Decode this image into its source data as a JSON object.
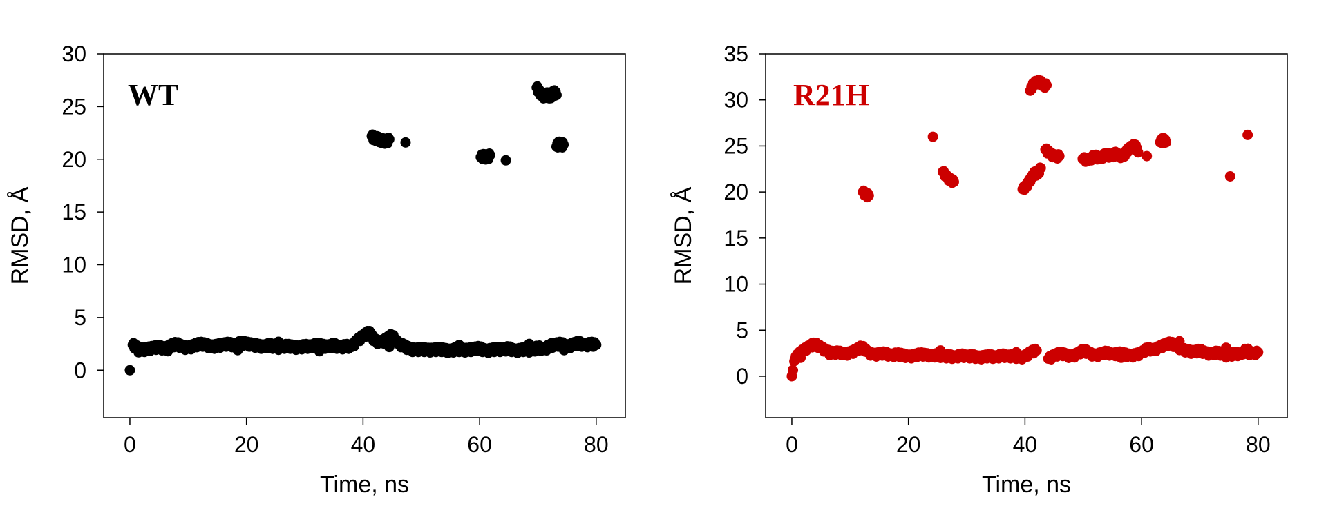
{
  "chart_data": [
    {
      "type": "scatter",
      "title": "",
      "panel_label": "WT",
      "xlabel": "Time, ns",
      "ylabel": "RMSD, Å",
      "xlim": [
        -4.5,
        85
      ],
      "ylim": [
        -4.5,
        30
      ],
      "xticks": [
        0,
        20,
        40,
        60,
        80
      ],
      "yticks": [
        0,
        5,
        10,
        15,
        20,
        25,
        30
      ],
      "grid": false,
      "color": "#000000",
      "series": [
        {
          "x": [
            0,
            0.5,
            1,
            2,
            3,
            4,
            5,
            6,
            7,
            8,
            9,
            10,
            11,
            12,
            13,
            14,
            15,
            16,
            17,
            18,
            19,
            20,
            21,
            22,
            23,
            24,
            25,
            26,
            27,
            28,
            29,
            30,
            31,
            32,
            33,
            34,
            35,
            36,
            37,
            38,
            39,
            40,
            41,
            41.5,
            42,
            43,
            44,
            45,
            46,
            47,
            48,
            49,
            50,
            51,
            52,
            53,
            54,
            55,
            56,
            57,
            58,
            59,
            60,
            61,
            62,
            63,
            64,
            65,
            66,
            67,
            68,
            69,
            70,
            71,
            72,
            73,
            74,
            75,
            76,
            77,
            78,
            79,
            80,
            1.5,
            6.5,
            12.5,
            18.5,
            25.5,
            32.5,
            38.5,
            44.5,
            50.5,
            56.5,
            62.5,
            68.5,
            74.5,
            78.5,
            41.5,
            42,
            42.5,
            43,
            43.5,
            44,
            44.5,
            47.3,
            60.2,
            60.8,
            61.3,
            61.8,
            64.5,
            69.8,
            70.2,
            70.7,
            71.2,
            71.7,
            72.2,
            72.7,
            73.2,
            73.2,
            73.6,
            74,
            74.4
          ],
          "y": [
            0,
            2.4,
            2.2,
            1.9,
            2.0,
            2.1,
            2.2,
            2.0,
            2.3,
            2.5,
            2.2,
            2.1,
            2.3,
            2.5,
            2.4,
            2.2,
            2.3,
            2.4,
            2.5,
            2.3,
            2.6,
            2.5,
            2.4,
            2.3,
            2.2,
            2.4,
            2.1,
            2.2,
            2.3,
            2.2,
            2.1,
            2.3,
            2.2,
            2.4,
            2.3,
            2.2,
            2.4,
            2.1,
            2.3,
            2.2,
            2.8,
            3.2,
            3.6,
            3.2,
            2.8,
            2.6,
            2.9,
            3.3,
            2.5,
            2.3,
            2.0,
            1.9,
            2.0,
            1.9,
            1.9,
            2.0,
            1.9,
            1.8,
            2.0,
            1.9,
            1.9,
            2.0,
            2.1,
            1.8,
            1.9,
            2.0,
            1.9,
            2.1,
            1.8,
            1.9,
            2.0,
            1.8,
            2.2,
            1.9,
            2.3,
            2.4,
            2.5,
            2.2,
            2.4,
            2.6,
            2.3,
            2.5,
            2.4,
            1.7,
            1.8,
            2.6,
            1.9,
            2.7,
            1.8,
            2.6,
            2.2,
            1.8,
            2.4,
            1.9,
            2.5,
            1.9,
            2.2,
            22.2,
            21.9,
            22.0,
            21.7,
            21.8,
            21.6,
            21.9,
            21.6,
            20.2,
            20.3,
            20.1,
            20.4,
            19.9,
            26.8,
            26.4,
            26.1,
            25.9,
            26.2,
            25.8,
            26.4,
            26.1,
            21.2,
            21.5,
            21.3,
            21.4
          ]
        }
      ]
    },
    {
      "type": "scatter",
      "title": "",
      "panel_label": "R21H",
      "xlabel": "Time, ns",
      "ylabel": "RMSD, Å",
      "xlim": [
        -4.5,
        85
      ],
      "ylim": [
        -4.5,
        35
      ],
      "xticks": [
        0,
        20,
        40,
        60,
        80
      ],
      "yticks": [
        0,
        5,
        10,
        15,
        20,
        25,
        30,
        35
      ],
      "grid": false,
      "color": "#cc0000",
      "series": [
        {
          "x": [
            0,
            0.5,
            1,
            2,
            3,
            4,
            5,
            6,
            7,
            8,
            9,
            10,
            11,
            12,
            13,
            14,
            15,
            16,
            17,
            18,
            19,
            20,
            21,
            22,
            23,
            24,
            25,
            26,
            27,
            28,
            29,
            30,
            31,
            32,
            33,
            34,
            35,
            36,
            37,
            38,
            39,
            40,
            41,
            42,
            44,
            45,
            46,
            47,
            48,
            49,
            50,
            51,
            52,
            53,
            54,
            55,
            56,
            57,
            58,
            59,
            60,
            61,
            62,
            63,
            64,
            65,
            66,
            67,
            68,
            69,
            70,
            71,
            72,
            73,
            74,
            75,
            76,
            77,
            78,
            79,
            80,
            1.5,
            3.5,
            6.5,
            12.5,
            18.5,
            25.5,
            32.5,
            38.5,
            44.5,
            50.5,
            56.5,
            63.5,
            66.5,
            70.5,
            74.5,
            78.5,
            12.2,
            12.7,
            13.2,
            24.2,
            25.9,
            26.6,
            27.2,
            27.8,
            39.6,
            40.2,
            40.7,
            41.2,
            41.7,
            42.2,
            42.7,
            40.9,
            41.5,
            42.6,
            43.1,
            43.7,
            43.5,
            44.2,
            45.2,
            45.9,
            49.9,
            50.9,
            51.9,
            52.9,
            53.9,
            54.9,
            55.4,
            55.9,
            56.9,
            57.4,
            57.9,
            58.9,
            59.4,
            60.9,
            63.2,
            63.7,
            64.2,
            75.2,
            78.2
          ],
          "y": [
            0,
            1.8,
            2.3,
            2.8,
            3.2,
            3.5,
            3.1,
            2.7,
            2.5,
            2.6,
            2.4,
            2.5,
            2.8,
            3.2,
            2.6,
            2.3,
            2.4,
            2.5,
            2.2,
            2.4,
            2.3,
            2.1,
            2.2,
            2.4,
            2.3,
            2.2,
            2.3,
            2.1,
            2.2,
            2.0,
            2.3,
            2.1,
            2.2,
            2.0,
            2.1,
            2.2,
            2.0,
            2.3,
            2.1,
            2.2,
            2.0,
            2.1,
            2.6,
            2.8,
            1.9,
            2.2,
            2.5,
            2.3,
            2.1,
            2.4,
            2.8,
            2.5,
            2.2,
            2.4,
            2.6,
            2.3,
            2.5,
            2.4,
            2.2,
            2.3,
            2.5,
            3.0,
            2.8,
            3.1,
            3.4,
            3.6,
            3.2,
            2.9,
            2.7,
            2.6,
            2.8,
            2.5,
            2.4,
            2.6,
            2.3,
            2.2,
            2.5,
            2.3,
            2.9,
            2.4,
            2.6,
            2.0,
            3.6,
            2.3,
            2.7,
            2.1,
            2.8,
            2.0,
            2.6,
            2.2,
            2.9,
            2.0,
            3.4,
            3.8,
            2.6,
            3.1,
            2.3,
            20.0,
            19.7,
            19.6,
            26.0,
            22.2,
            21.6,
            21.3,
            21.1,
            20.3,
            20.6,
            21.1,
            21.6,
            22.1,
            21.9,
            22.6,
            31.0,
            31.8,
            32.0,
            31.5,
            31.6,
            24.6,
            24.2,
            23.8,
            23.9,
            23.6,
            23.4,
            23.9,
            23.6,
            24.1,
            23.8,
            24.2,
            24.0,
            23.8,
            24.4,
            24.7,
            25.1,
            24.3,
            23.9,
            25.4,
            25.7,
            25.4,
            21.7,
            26.2
          ]
        }
      ]
    }
  ]
}
